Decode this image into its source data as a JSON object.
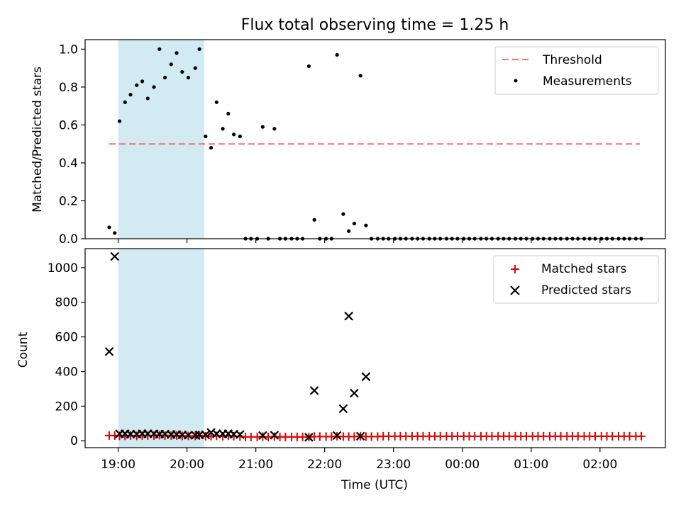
{
  "title": "Flux total observing time = 1.25 h",
  "colors": {
    "threshold": "#ff6b6b",
    "measurements": "#000000",
    "matched": "#e00000",
    "predicted": "#000000",
    "span": "#add8e6"
  },
  "chart_data": [
    {
      "type": "scatter",
      "ylabel": "Matched/Predicted stars",
      "ylim": [
        0,
        1.05
      ],
      "yticks": [
        0,
        0.2,
        0.4,
        0.6,
        0.8,
        1.0
      ],
      "ytick_labels": [
        "0.0",
        "0.2",
        "0.4",
        "0.6",
        "0.8",
        "1.0"
      ],
      "x_unit": "hours (UTC), 24 = 00:00 next day",
      "xlim": [
        18.52,
        26.95
      ],
      "shaded_span": [
        19.0,
        20.25
      ],
      "legend": {
        "position": "top-right",
        "entries": [
          "Threshold",
          "Measurements"
        ]
      },
      "series": [
        {
          "name": "Threshold",
          "style": "dashed-line",
          "x": [
            18.87,
            26.58
          ],
          "y": [
            0.5,
            0.5
          ]
        },
        {
          "name": "Measurements",
          "style": "dots",
          "x": [
            18.87,
            18.95,
            19.02,
            19.1,
            19.18,
            19.27,
            19.35,
            19.43,
            19.52,
            19.6,
            19.68,
            19.77,
            19.85,
            19.93,
            20.02,
            20.12,
            20.18,
            20.27,
            20.35,
            20.43,
            20.52,
            20.6,
            20.68,
            20.77,
            20.85,
            20.93,
            21.02,
            21.1,
            21.18,
            21.27,
            21.35,
            21.43,
            21.52,
            21.6,
            21.68,
            21.77,
            21.85,
            21.93,
            22.02,
            22.1,
            22.18,
            22.27,
            22.35,
            22.43,
            22.52,
            22.6,
            22.68,
            22.77,
            22.85,
            22.93,
            23.02,
            23.1,
            23.18,
            23.27,
            23.35,
            23.43,
            23.52,
            23.6,
            23.68,
            23.77,
            23.85,
            23.93,
            24.02,
            24.1,
            24.18,
            24.27,
            24.35,
            24.43,
            24.52,
            24.6,
            24.68,
            24.77,
            24.85,
            24.93,
            25.02,
            25.1,
            25.18,
            25.27,
            25.35,
            25.43,
            25.52,
            25.6,
            25.68,
            25.77,
            25.85,
            25.93,
            26.02,
            26.1,
            26.18,
            26.27,
            26.35,
            26.43,
            26.52,
            26.6
          ],
          "y": [
            0.06,
            0.03,
            0.62,
            0.72,
            0.76,
            0.81,
            0.83,
            0.74,
            0.8,
            1.0,
            0.85,
            0.92,
            0.98,
            0.88,
            0.85,
            0.9,
            1.0,
            0.54,
            0.48,
            0.72,
            0.58,
            0.66,
            0.55,
            0.54,
            0.0,
            0.0,
            0.0,
            0.59,
            0.0,
            0.58,
            0.0,
            0.0,
            0.0,
            0.0,
            0.0,
            0.91,
            0.1,
            0.0,
            0.0,
            0.0,
            0.97,
            0.13,
            0.04,
            0.08,
            0.86,
            0.07,
            0.0,
            0.0,
            0.0,
            0.0,
            0.0,
            0.0,
            0.0,
            0.0,
            0.0,
            0.0,
            0.0,
            0.0,
            0.0,
            0.0,
            0.0,
            0.0,
            0.0,
            0.0,
            0.0,
            0.0,
            0.0,
            0.0,
            0.0,
            0.0,
            0.0,
            0.0,
            0.0,
            0.0,
            0.0,
            0.0,
            0.0,
            0.0,
            0.0,
            0.0,
            0.0,
            0.0,
            0.0,
            0.0,
            0.0,
            0.0,
            0.0,
            0.0,
            0.0,
            0.0,
            0.0,
            0.0,
            0.0,
            0.0
          ]
        }
      ]
    },
    {
      "type": "scatter",
      "xlabel": "Time (UTC)",
      "ylabel": "Count",
      "ylim": [
        -40,
        1110
      ],
      "yticks": [
        0,
        200,
        400,
        600,
        800,
        1000
      ],
      "ytick_labels": [
        "0",
        "200",
        "400",
        "600",
        "800",
        "1000"
      ],
      "x_unit": "hours (UTC), 24 = 00:00 next day",
      "xlim": [
        18.52,
        26.95
      ],
      "xticks": [
        19,
        20,
        21,
        22,
        23,
        24,
        25,
        26
      ],
      "xtick_labels": [
        "19:00",
        "20:00",
        "21:00",
        "22:00",
        "23:00",
        "00:00",
        "01:00",
        "02:00"
      ],
      "shaded_span": [
        19.0,
        20.25
      ],
      "legend": {
        "position": "top-right",
        "entries": [
          "Matched stars",
          "Predicted stars"
        ]
      },
      "series": [
        {
          "name": "Matched stars",
          "marker": "plus",
          "x": [
            18.87,
            18.95,
            19.02,
            19.1,
            19.18,
            19.27,
            19.35,
            19.43,
            19.52,
            19.6,
            19.68,
            19.77,
            19.85,
            19.93,
            20.02,
            20.12,
            20.18,
            20.27,
            20.35,
            20.43,
            20.52,
            20.6,
            20.68,
            20.77,
            20.85,
            20.93,
            21.02,
            21.1,
            21.18,
            21.27,
            21.35,
            21.43,
            21.52,
            21.6,
            21.68,
            21.77,
            21.85,
            21.93,
            22.02,
            22.1,
            22.18,
            22.27,
            22.35,
            22.43,
            22.52,
            22.6,
            22.68,
            22.77,
            22.85,
            22.93,
            23.02,
            23.1,
            23.18,
            23.27,
            23.35,
            23.43,
            23.52,
            23.6,
            23.68,
            23.77,
            23.85,
            23.93,
            24.02,
            24.1,
            24.18,
            24.27,
            24.35,
            24.43,
            24.52,
            24.6,
            24.68,
            24.77,
            24.85,
            24.93,
            25.02,
            25.1,
            25.18,
            25.27,
            25.35,
            25.43,
            25.52,
            25.6,
            25.68,
            25.77,
            25.85,
            25.93,
            26.02,
            26.1,
            26.18,
            26.27,
            26.35,
            26.43,
            26.52,
            26.6
          ],
          "y": [
            30,
            30,
            28,
            28,
            30,
            28,
            30,
            30,
            30,
            32,
            30,
            30,
            30,
            28,
            28,
            28,
            30,
            26,
            26,
            28,
            26,
            28,
            26,
            24,
            22,
            22,
            22,
            24,
            22,
            24,
            22,
            22,
            22,
            22,
            22,
            22,
            24,
            24,
            24,
            24,
            26,
            24,
            24,
            24,
            26,
            24,
            24,
            24,
            26,
            26,
            26,
            26,
            26,
            26,
            26,
            26,
            26,
            26,
            26,
            26,
            26,
            26,
            26,
            26,
            26,
            26,
            26,
            26,
            26,
            26,
            26,
            26,
            26,
            26,
            26,
            26,
            26,
            26,
            26,
            26,
            26,
            26,
            26,
            26,
            26,
            26,
            26,
            26,
            26,
            26,
            26,
            26,
            26,
            26
          ]
        },
        {
          "name": "Predicted stars",
          "marker": "x",
          "x": [
            18.87,
            18.95,
            19.02,
            19.1,
            19.18,
            19.27,
            19.35,
            19.43,
            19.52,
            19.6,
            19.68,
            19.77,
            19.85,
            19.93,
            20.02,
            20.12,
            20.18,
            20.27,
            20.35,
            20.43,
            20.52,
            20.6,
            20.68,
            20.77,
            21.1,
            21.27,
            21.77,
            21.85,
            22.18,
            22.27,
            22.35,
            22.43,
            22.52,
            22.6
          ],
          "y": [
            515,
            1065,
            40,
            40,
            38,
            38,
            40,
            40,
            40,
            38,
            38,
            36,
            36,
            34,
            32,
            32,
            34,
            34,
            48,
            40,
            40,
            40,
            38,
            36,
            30,
            32,
            20,
            290,
            30,
            185,
            720,
            275,
            26,
            370
          ]
        }
      ]
    }
  ]
}
